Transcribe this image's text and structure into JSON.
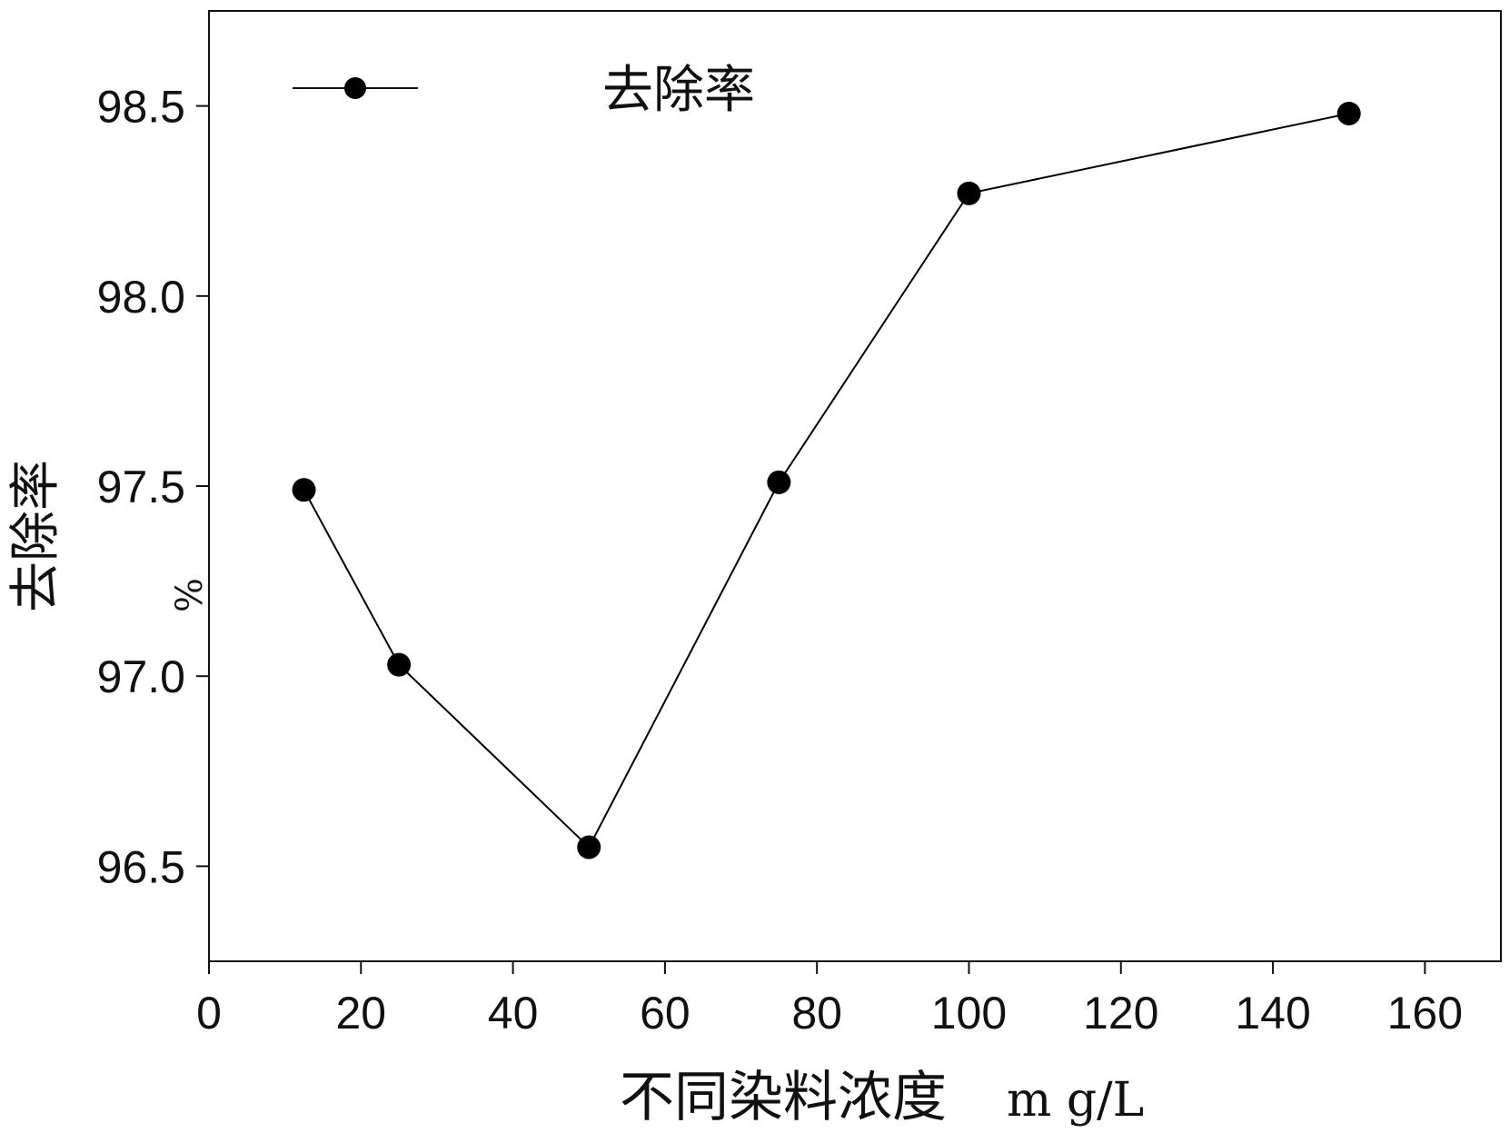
{
  "chart_data": {
    "type": "line",
    "xlabel": "不同染料浓度",
    "xunit": "m g/L",
    "ylabel": "去除率",
    "yunit": "%",
    "xlim": [
      0,
      170
    ],
    "ylim": [
      96.25,
      98.75
    ],
    "xticks": [
      0,
      20,
      40,
      60,
      80,
      100,
      120,
      140,
      160
    ],
    "xtick_labels": [
      "0",
      "20",
      "40",
      "60",
      "80",
      "100",
      "120",
      "140",
      "160"
    ],
    "yticks": [
      96.5,
      97.0,
      97.5,
      98.0,
      98.5
    ],
    "ytick_labels": [
      "96.5",
      "97.0",
      "97.5",
      "98.0",
      "98.5"
    ],
    "legend_position": "top-left",
    "grid": false,
    "series": [
      {
        "name": "去除率",
        "marker": "filled-circle",
        "color": "#000000",
        "x": [
          12.5,
          25,
          50,
          75,
          100,
          150
        ],
        "y": [
          97.49,
          97.03,
          96.55,
          97.51,
          98.27,
          98.48
        ]
      }
    ]
  }
}
